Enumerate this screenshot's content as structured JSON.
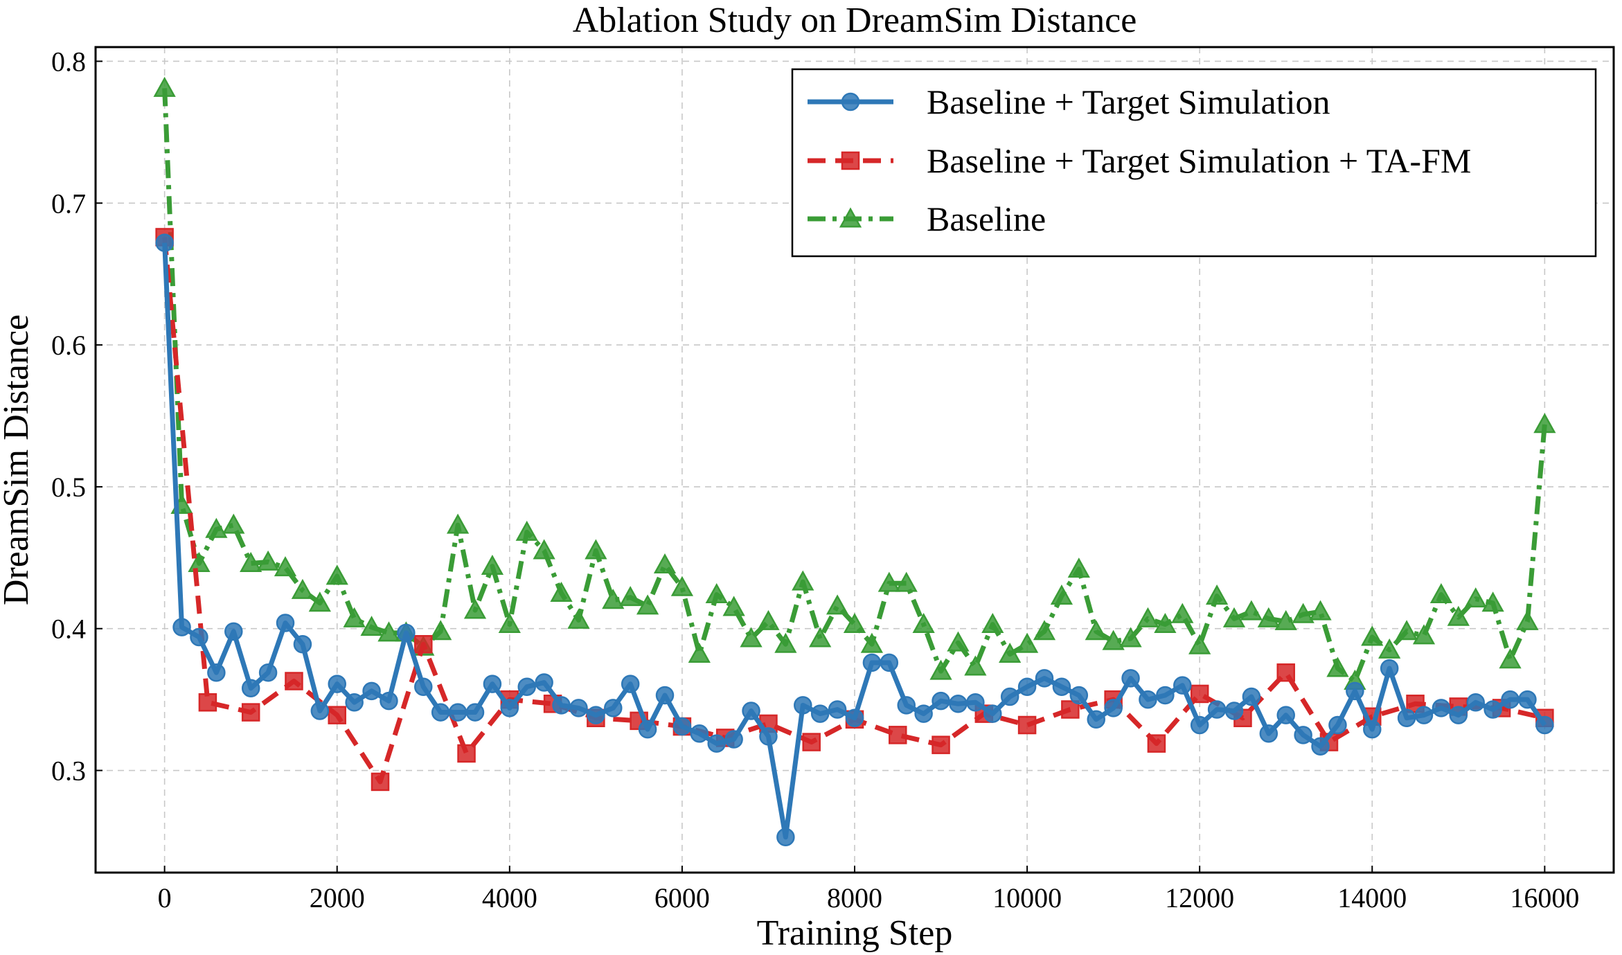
{
  "chart_data": {
    "type": "line",
    "title": "Ablation Study on DreamSim Distance",
    "xlabel": "Training Step",
    "ylabel": "DreamSim Distance",
    "xlim": [
      -800,
      16800
    ],
    "ylim": [
      0.228,
      0.81
    ],
    "xticks": [
      0,
      2000,
      4000,
      6000,
      8000,
      10000,
      12000,
      14000,
      16000
    ],
    "xtick_labels": [
      "0",
      "2000",
      "4000",
      "6000",
      "8000",
      "10000",
      "12000",
      "14000",
      "16000"
    ],
    "yticks": [
      0.3,
      0.4,
      0.5,
      0.6,
      0.7,
      0.8
    ],
    "ytick_labels": [
      "0.3",
      "0.4",
      "0.5",
      "0.6",
      "0.7",
      "0.8"
    ],
    "grid": true,
    "legend_position": "top-right",
    "series": [
      {
        "name": "Baseline + Target Simulation",
        "color": "#2E78B7",
        "line_style": "solid",
        "marker": "circle",
        "x": [
          0,
          200,
          400,
          600,
          800,
          1000,
          1200,
          1400,
          1600,
          1800,
          2000,
          2200,
          2400,
          2600,
          2800,
          3000,
          3200,
          3400,
          3600,
          3800,
          4000,
          4200,
          4400,
          4600,
          4800,
          5000,
          5200,
          5400,
          5600,
          5800,
          6000,
          6200,
          6400,
          6600,
          6800,
          7000,
          7200,
          7400,
          7600,
          7800,
          8000,
          8200,
          8400,
          8600,
          8800,
          9000,
          9200,
          9400,
          9600,
          9800,
          10000,
          10200,
          10400,
          10600,
          10800,
          11000,
          11200,
          11400,
          11600,
          11800,
          12000,
          12200,
          12400,
          12600,
          12800,
          13000,
          13200,
          13400,
          13600,
          13800,
          14000,
          14200,
          14400,
          14600,
          14800,
          15000,
          15200,
          15400,
          15600,
          15800,
          16000
        ],
        "y": [
          0.672,
          0.401,
          0.394,
          0.369,
          0.398,
          0.358,
          0.369,
          0.404,
          0.389,
          0.342,
          0.361,
          0.348,
          0.356,
          0.349,
          0.397,
          0.359,
          0.341,
          0.341,
          0.341,
          0.361,
          0.344,
          0.359,
          0.362,
          0.346,
          0.344,
          0.339,
          0.344,
          0.361,
          0.329,
          0.353,
          0.331,
          0.326,
          0.319,
          0.322,
          0.342,
          0.324,
          0.253,
          0.346,
          0.34,
          0.343,
          0.337,
          0.376,
          0.376,
          0.346,
          0.34,
          0.349,
          0.347,
          0.348,
          0.34,
          0.352,
          0.359,
          0.365,
          0.359,
          0.353,
          0.336,
          0.344,
          0.365,
          0.35,
          0.353,
          0.36,
          0.332,
          0.343,
          0.342,
          0.352,
          0.326,
          0.339,
          0.325,
          0.317,
          0.332,
          0.356,
          0.329,
          0.372,
          0.337,
          0.339,
          0.344,
          0.339,
          0.348,
          0.343,
          0.35,
          0.35,
          0.332
        ]
      },
      {
        "name": "Baseline + Target Simulation + TA-FM",
        "color": "#D62728",
        "line_style": "dashed",
        "marker": "square",
        "x": [
          0,
          500,
          1000,
          1500,
          2000,
          2500,
          3000,
          3500,
          4000,
          4500,
          5000,
          5500,
          6000,
          6500,
          7000,
          7500,
          8000,
          8500,
          9000,
          9500,
          10000,
          10500,
          11000,
          11500,
          12000,
          12500,
          13000,
          13500,
          14000,
          14500,
          15000,
          15500,
          16000
        ],
        "y": [
          0.676,
          0.348,
          0.341,
          0.363,
          0.339,
          0.292,
          0.389,
          0.312,
          0.35,
          0.347,
          0.337,
          0.335,
          0.331,
          0.323,
          0.333,
          0.32,
          0.336,
          0.325,
          0.318,
          0.34,
          0.332,
          0.343,
          0.35,
          0.319,
          0.354,
          0.337,
          0.369,
          0.32,
          0.338,
          0.347,
          0.345,
          0.344,
          0.337
        ]
      },
      {
        "name": "Baseline",
        "color": "#3A9C36",
        "line_style": "dashdot",
        "marker": "triangle",
        "x": [
          0,
          200,
          400,
          600,
          800,
          1000,
          1200,
          1400,
          1600,
          1800,
          2000,
          2200,
          2400,
          2600,
          2800,
          3000,
          3200,
          3400,
          3600,
          3800,
          4000,
          4200,
          4400,
          4600,
          4800,
          5000,
          5200,
          5400,
          5600,
          5800,
          6000,
          6200,
          6400,
          6600,
          6800,
          7000,
          7200,
          7400,
          7600,
          7800,
          8000,
          8200,
          8400,
          8600,
          8800,
          9000,
          9200,
          9400,
          9600,
          9800,
          10000,
          10200,
          10400,
          10600,
          10800,
          11000,
          11200,
          11400,
          11600,
          11800,
          12000,
          12200,
          12400,
          12600,
          12800,
          13000,
          13200,
          13400,
          13600,
          13800,
          14000,
          14200,
          14400,
          14600,
          14800,
          15000,
          15200,
          15400,
          15600,
          15800,
          16000
        ],
        "y": [
          0.781,
          0.487,
          0.446,
          0.47,
          0.473,
          0.446,
          0.447,
          0.443,
          0.427,
          0.418,
          0.437,
          0.407,
          0.401,
          0.397,
          0.397,
          0.387,
          0.398,
          0.473,
          0.413,
          0.444,
          0.403,
          0.468,
          0.455,
          0.425,
          0.406,
          0.455,
          0.42,
          0.422,
          0.416,
          0.445,
          0.429,
          0.382,
          0.424,
          0.415,
          0.393,
          0.405,
          0.389,
          0.433,
          0.393,
          0.416,
          0.403,
          0.389,
          0.432,
          0.432,
          0.403,
          0.37,
          0.39,
          0.373,
          0.403,
          0.382,
          0.389,
          0.398,
          0.423,
          0.442,
          0.398,
          0.391,
          0.393,
          0.407,
          0.403,
          0.41,
          0.388,
          0.423,
          0.407,
          0.412,
          0.407,
          0.405,
          0.41,
          0.412,
          0.372,
          0.363,
          0.394,
          0.385,
          0.398,
          0.395,
          0.424,
          0.408,
          0.421,
          0.418,
          0.378,
          0.405,
          0.544
        ]
      }
    ]
  }
}
